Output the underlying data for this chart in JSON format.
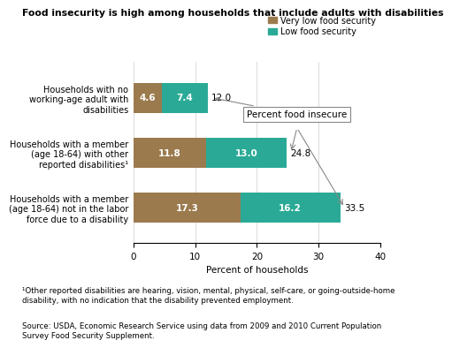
{
  "title": "Food insecurity is high among households that include adults with disabilities",
  "categories": [
    "Households with no\nworking-age adult with\ndisabilities",
    "Households with a member\n(age 18-64) with other\nreported disabilities¹",
    "Households with a member\n(age 18-64) not in the labor\nforce due to a disability"
  ],
  "very_low": [
    4.6,
    11.8,
    17.3
  ],
  "low": [
    7.4,
    13.0,
    16.2
  ],
  "totals": [
    12.0,
    24.8,
    33.5
  ],
  "color_very_low": "#9b7a4e",
  "color_low": "#2aaa96",
  "xlim": [
    0,
    40
  ],
  "xticks": [
    0,
    10,
    20,
    30,
    40
  ],
  "xlabel": "Percent of households",
  "legend_labels": [
    "Very low food security",
    "Low food security"
  ],
  "footnote1": "¹Other reported disabilities are hearing, vision, mental, physical, self-care, or going-outside-home\ndisability, with no indication that the disability prevented employment.",
  "footnote2": "Source: USDA, Economic Research Service using data from 2009 and 2010 Current Population\nSurvey Food Security Supplement.",
  "annotation_box": "Percent food insecure",
  "bar_height": 0.55
}
